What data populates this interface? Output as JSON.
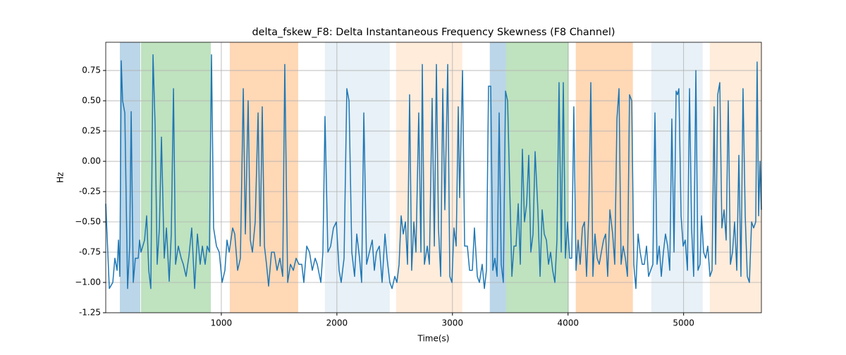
{
  "chart_data": {
    "type": "line",
    "title": "delta_fskew_F8: Delta Instantaneous Frequency Skewness (F8 Channel)",
    "xlabel": "Time(s)",
    "ylabel": "Hz",
    "xlim": [
      0,
      5673
    ],
    "ylim": [
      -1.25,
      0.983
    ],
    "xticks": [
      1000,
      2000,
      3000,
      4000,
      5000
    ],
    "yticks": [
      -1.25,
      {
        "value": -1.0,
        "label": "−1.00"
      },
      -0.75,
      {
        "value": -0.5,
        "label": "−0.50"
      },
      -0.25,
      {
        "value": 0,
        "label": "0.00"
      },
      0.25,
      {
        "value": 0.5,
        "label": "0.50"
      },
      0.75
    ],
    "grid": true,
    "spans": [
      {
        "x0": 122,
        "x1": 299,
        "color": "#1f77b4",
        "alpha": 0.3
      },
      {
        "x0": 305,
        "x1": 909,
        "color": "#2ca02c",
        "alpha": 0.3
      },
      {
        "x0": 1073,
        "x1": 1665,
        "color": "#ff7f0e",
        "alpha": 0.3
      },
      {
        "x0": 1896,
        "x1": 2457,
        "color": "#1f77b4",
        "alpha": 0.1
      },
      {
        "x0": 2512,
        "x1": 3085,
        "color": "#ff7f0e",
        "alpha": 0.15
      },
      {
        "x0": 3323,
        "x1": 3463,
        "color": "#1f77b4",
        "alpha": 0.3
      },
      {
        "x0": 3463,
        "x1": 4006,
        "color": "#2ca02c",
        "alpha": 0.3
      },
      {
        "x0": 4067,
        "x1": 4561,
        "color": "#ff7f0e",
        "alpha": 0.3
      },
      {
        "x0": 4720,
        "x1": 5165,
        "color": "#1f77b4",
        "alpha": 0.1
      },
      {
        "x0": 5226,
        "x1": 5673,
        "color": "#ff7f0e",
        "alpha": 0.15
      }
    ],
    "x": [
      0,
      31,
      61,
      79,
      98,
      110,
      122,
      134,
      146,
      165,
      189,
      207,
      220,
      238,
      256,
      281,
      293,
      305,
      336,
      354,
      372,
      390,
      409,
      427,
      445,
      464,
      482,
      506,
      525,
      549,
      567,
      586,
      604,
      628,
      653,
      671,
      695,
      720,
      744,
      769,
      793,
      817,
      836,
      860,
      878,
      897,
      915,
      933,
      958,
      982,
      1007,
      1031,
      1049,
      1068,
      1098,
      1116,
      1141,
      1165,
      1190,
      1208,
      1232,
      1251,
      1269,
      1293,
      1318,
      1336,
      1354,
      1373,
      1391,
      1409,
      1434,
      1458,
      1482,
      1507,
      1531,
      1549,
      1574,
      1598,
      1623,
      1647,
      1671,
      1696,
      1714,
      1739,
      1763,
      1787,
      1812,
      1830,
      1861,
      1879,
      1897,
      1922,
      1946,
      1970,
      1995,
      2019,
      2037,
      2062,
      2086,
      2105,
      2129,
      2153,
      2172,
      2196,
      2214,
      2233,
      2257,
      2281,
      2306,
      2324,
      2342,
      2367,
      2391,
      2416,
      2434,
      2458,
      2477,
      2501,
      2519,
      2538,
      2556,
      2574,
      2593,
      2611,
      2629,
      2647,
      2666,
      2684,
      2708,
      2727,
      2739,
      2757,
      2782,
      2800,
      2824,
      2843,
      2861,
      2879,
      2898,
      2916,
      2934,
      2959,
      2977,
      2995,
      3013,
      3032,
      3050,
      3062,
      3087,
      3105,
      3129,
      3148,
      3172,
      3190,
      3215,
      3233,
      3257,
      3276,
      3294,
      3312,
      3331,
      3349,
      3367,
      3386,
      3404,
      3422,
      3440,
      3459,
      3477,
      3495,
      3514,
      3532,
      3550,
      3569,
      3587,
      3605,
      3623,
      3642,
      3660,
      3678,
      3697,
      3715,
      3739,
      3758,
      3776,
      3794,
      3813,
      3831,
      3849,
      3867,
      3886,
      3904,
      3922,
      3941,
      3959,
      3977,
      3996,
      4014,
      4032,
      4050,
      4069,
      4087,
      4105,
      4124,
      4142,
      4160,
      4179,
      4197,
      4215,
      4233,
      4252,
      4270,
      4288,
      4307,
      4325,
      4343,
      4362,
      4386,
      4404,
      4423,
      4441,
      4459,
      4477,
      4496,
      4514,
      4532,
      4551,
      4569,
      4587,
      4606,
      4624,
      4642,
      4660,
      4679,
      4697,
      4715,
      4734,
      4752,
      4770,
      4789,
      4807,
      4825,
      4843,
      4862,
      4880,
      4898,
      4917,
      4935,
      4947,
      4959,
      4978,
      4996,
      5014,
      5033,
      5051,
      5069,
      5087,
      5106,
      5124,
      5142,
      5155,
      5173,
      5191,
      5209,
      5228,
      5246,
      5264,
      5277,
      5295,
      5313,
      5331,
      5350,
      5368,
      5386,
      5405,
      5423,
      5441,
      5460,
      5478,
      5496,
      5514,
      5533,
      5551,
      5569,
      5588,
      5606,
      5624,
      5636,
      5649,
      5661,
      5673
    ],
    "series": [
      {
        "color": "#1f77b4",
        "values": [
          -0.35,
          -1.05,
          -1.0,
          -0.8,
          -0.9,
          -0.65,
          -0.95,
          0.83,
          0.5,
          0.4,
          -1.05,
          -0.7,
          0.41,
          -1.0,
          -0.8,
          -0.8,
          -0.65,
          -0.75,
          -0.65,
          -0.45,
          -0.9,
          -1.05,
          0.88,
          0.3,
          -0.85,
          -0.55,
          0.2,
          -0.8,
          -0.55,
          -0.99,
          -0.6,
          0.6,
          -0.85,
          -0.7,
          -0.8,
          -0.85,
          -0.95,
          -0.78,
          -0.55,
          -1.05,
          -0.6,
          -0.85,
          -0.7,
          -0.85,
          -0.7,
          -0.75,
          0.88,
          -0.55,
          -0.7,
          -0.75,
          -1.0,
          -0.9,
          -0.65,
          -0.75,
          -0.55,
          -0.6,
          -0.9,
          -0.8,
          0.6,
          -0.6,
          0.5,
          -0.65,
          -0.75,
          -0.5,
          0.4,
          -0.7,
          0.45,
          -0.7,
          -0.85,
          -1.03,
          -0.75,
          -0.75,
          -0.9,
          -0.8,
          -0.95,
          0.8,
          -1.0,
          -0.85,
          -0.9,
          -0.8,
          -0.85,
          -0.85,
          -1.0,
          -0.7,
          -0.75,
          -0.9,
          -0.8,
          -0.85,
          -1.0,
          -0.75,
          0.37,
          -0.75,
          -0.7,
          -0.55,
          -0.5,
          -0.9,
          -1.0,
          -0.8,
          0.6,
          0.5,
          -0.75,
          -0.95,
          -0.6,
          -0.8,
          -1.0,
          0.4,
          -0.85,
          -0.75,
          -0.65,
          -0.9,
          -0.75,
          -0.7,
          -1.0,
          -0.6,
          -0.8,
          -1.0,
          -1.05,
          -0.95,
          -1.0,
          -0.85,
          -0.45,
          -0.6,
          -0.5,
          -0.85,
          0.55,
          -0.9,
          -0.5,
          -0.75,
          0.4,
          -0.75,
          0.8,
          -0.85,
          -0.7,
          -0.85,
          0.52,
          -0.7,
          0.8,
          -0.55,
          -0.95,
          0.6,
          -0.4,
          0.8,
          -0.95,
          -1.0,
          -0.55,
          -0.7,
          0.45,
          -0.3,
          0.75,
          -0.7,
          -0.7,
          -0.9,
          -0.9,
          -0.55,
          -0.95,
          -1.0,
          -0.85,
          -1.05,
          -0.9,
          0.62,
          0.62,
          -0.9,
          -0.8,
          -0.95,
          0.4,
          -0.85,
          -1.0,
          0.58,
          0.5,
          -0.2,
          -0.95,
          -0.7,
          -0.7,
          -0.35,
          -0.85,
          0.1,
          -0.5,
          -0.35,
          0.05,
          -0.75,
          -0.6,
          0.08,
          -0.4,
          -0.95,
          -0.4,
          -0.6,
          -0.65,
          -0.85,
          -0.75,
          -0.9,
          -1.0,
          -0.65,
          0.65,
          -0.75,
          0.65,
          -0.8,
          -0.5,
          -0.8,
          -0.8,
          0.45,
          -0.9,
          -0.65,
          -0.85,
          -0.55,
          -0.5,
          -0.95,
          -0.45,
          0.65,
          -0.95,
          -0.6,
          -0.8,
          -0.85,
          -0.75,
          -0.65,
          -0.6,
          -0.95,
          -0.4,
          -0.6,
          -0.85,
          0.35,
          0.6,
          -0.85,
          -0.7,
          -0.8,
          -0.95,
          0.55,
          0.5,
          -0.85,
          -1.05,
          -0.6,
          -0.75,
          -0.85,
          -0.85,
          -0.7,
          -0.95,
          -0.9,
          -0.85,
          0.4,
          -0.85,
          -0.7,
          -0.95,
          -0.75,
          -0.6,
          -0.7,
          -0.9,
          0.35,
          -0.75,
          0.58,
          0.55,
          0.6,
          -0.45,
          -0.7,
          -0.65,
          -0.9,
          0.6,
          -0.55,
          -0.95,
          0.75,
          -0.9,
          -0.85,
          -0.45,
          -0.75,
          -0.8,
          -0.7,
          -0.95,
          -0.9,
          0.45,
          -0.85,
          0.55,
          0.65,
          -0.55,
          -0.4,
          -0.65,
          0.5,
          -0.85,
          -0.75,
          -0.5,
          -0.9,
          0.05,
          -0.95,
          0.6,
          -0.45,
          -0.95,
          -1.0,
          -0.5,
          -0.55,
          -0.5,
          0.82,
          -0.45,
          0.0,
          -0.4
        ]
      }
    ]
  }
}
